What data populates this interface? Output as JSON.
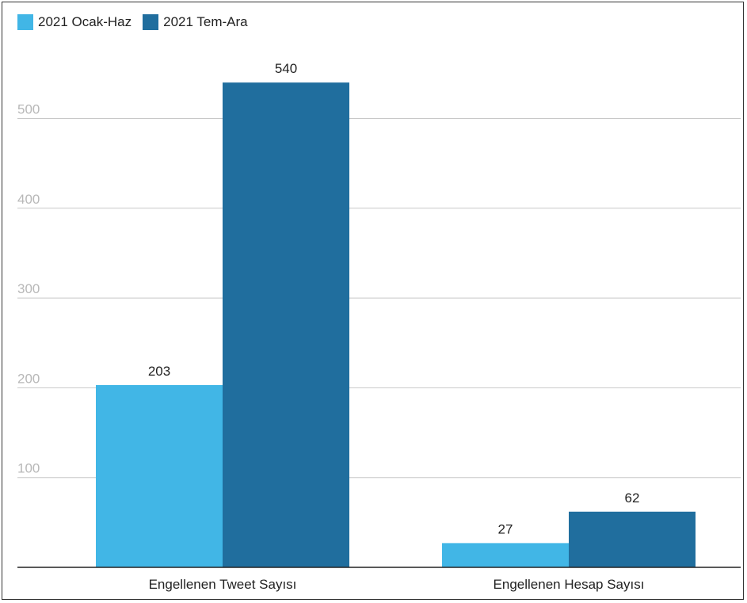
{
  "chart_data": {
    "type": "bar",
    "categories": [
      "Engellenen Tweet Sayısı",
      "Engellenen Hesap Sayısı"
    ],
    "series": [
      {
        "name": "2021 Ocak-Haz",
        "values": [
          203,
          27
        ],
        "color": "#41b6e6"
      },
      {
        "name": "2021 Tem-Ara",
        "values": [
          540,
          62
        ],
        "color": "#206e9e"
      }
    ],
    "title": "",
    "xlabel": "",
    "ylabel": "",
    "ylim": [
      0,
      600
    ],
    "yticks": [
      100,
      200,
      300,
      400,
      500
    ],
    "grid": true,
    "legend": "top-left"
  }
}
